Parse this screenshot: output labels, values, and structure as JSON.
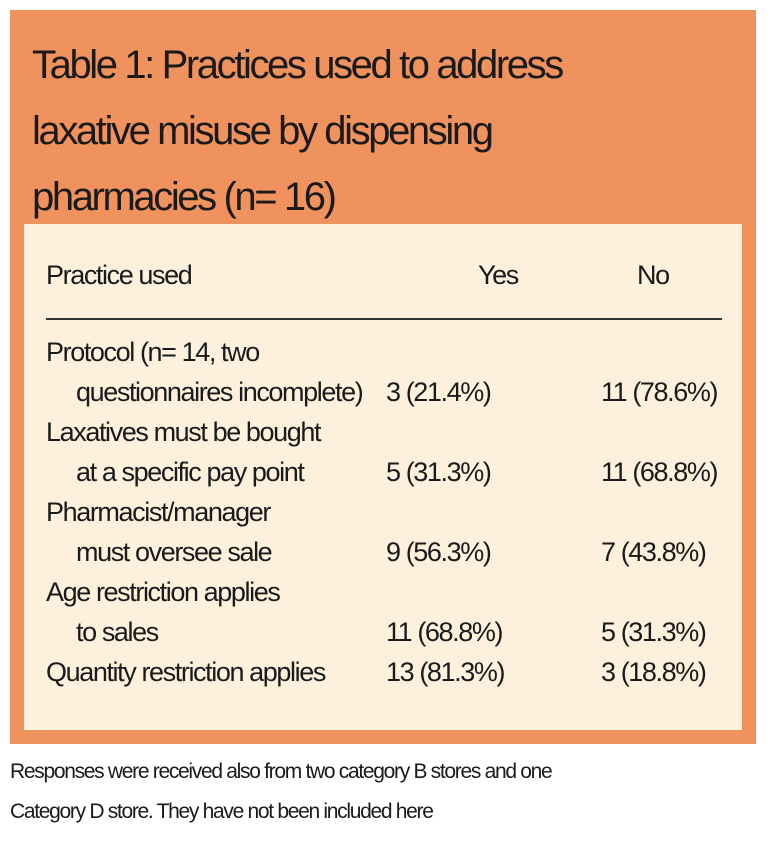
{
  "title": {
    "line1": "Table 1: Practices used to address",
    "line2": "laxative misuse by dispensing",
    "line3": "pharmacies (n= 16)"
  },
  "table": {
    "headers": {
      "practice": "Practice used",
      "yes": "Yes",
      "no": "No"
    },
    "rows": [
      {
        "practice_line1": "Protocol (n= 14, two",
        "practice_line2": "questionnaires incomplete)",
        "yes": "3 (21.4%)",
        "no": "11 (78.6%)"
      },
      {
        "practice_line1": "Laxatives must be bought",
        "practice_line2": "at a specific pay point",
        "yes": "5 (31.3%)",
        "no": "11 (68.8%)"
      },
      {
        "practice_line1": "Pharmacist/manager",
        "practice_line2": "must oversee sale",
        "yes": "9 (56.3%)",
        "no": "7 (43.8%)"
      },
      {
        "practice_line1": "Age restriction applies",
        "practice_line2": "to sales",
        "yes": "11 (68.8%)",
        "no": "5 (31.3%)"
      },
      {
        "practice_line1": "Quantity restriction applies",
        "practice_line2": "",
        "yes": "13 (81.3%)",
        "no": "3 (18.8%)"
      }
    ]
  },
  "footnote": {
    "line1": "Responses were received also from two category B stores and one",
    "line2": "Category D store. They have not been included here"
  },
  "colors": {
    "panel": "#f0925e",
    "inner": "#fdf1de",
    "text": "#1a1a1a"
  }
}
